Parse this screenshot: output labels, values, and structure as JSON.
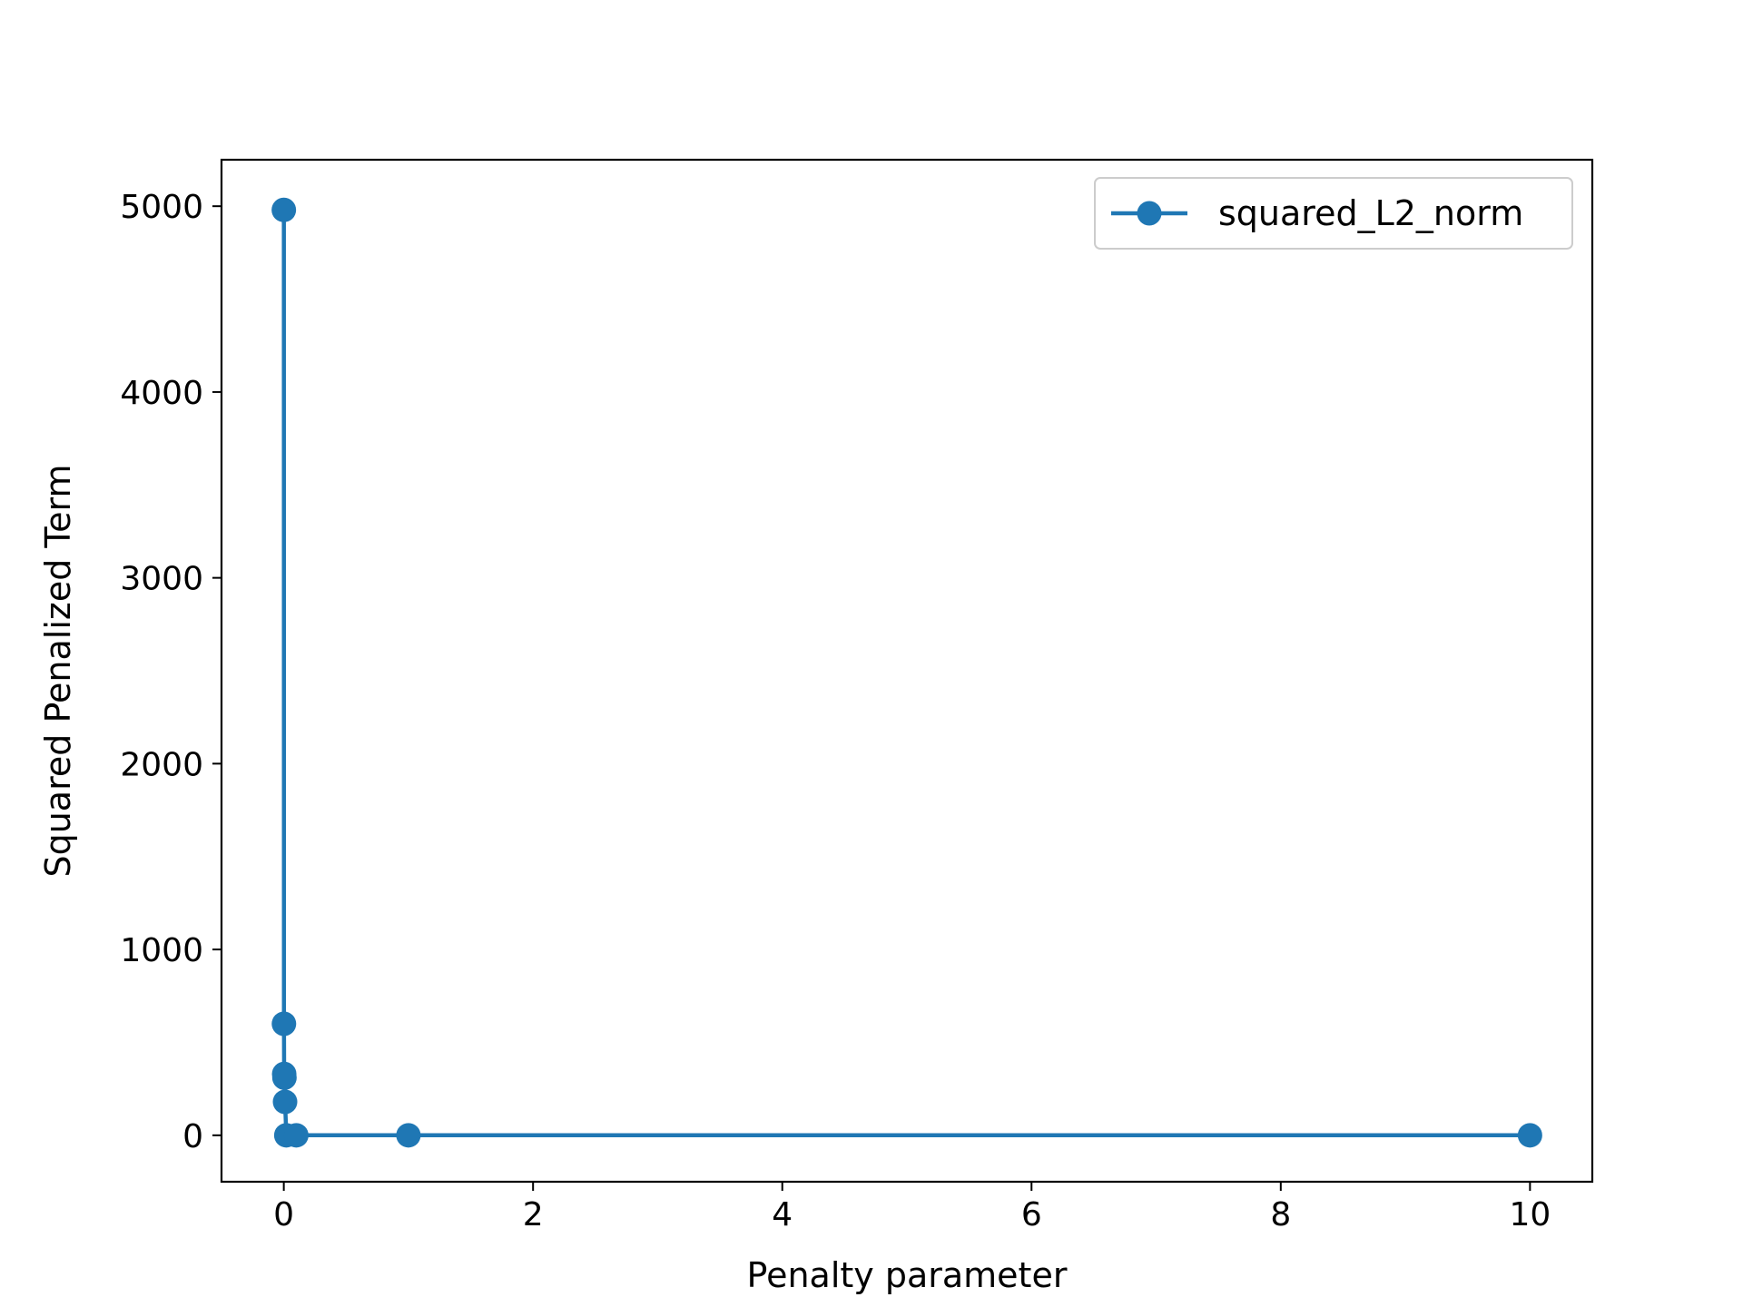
{
  "chart_data": {
    "type": "line",
    "title": "",
    "xlabel": "Penalty parameter",
    "ylabel": "Squared Penalized Term",
    "xlim": [
      -0.5,
      10.5
    ],
    "ylim": [
      -250,
      5250
    ],
    "xticks": [
      0,
      2,
      4,
      6,
      8,
      10
    ],
    "yticks": [
      0,
      1000,
      2000,
      3000,
      4000,
      5000
    ],
    "xtick_labels": [
      "0",
      "2",
      "4",
      "6",
      "8",
      "10"
    ],
    "ytick_labels": [
      "0",
      "1000",
      "2000",
      "3000",
      "4000",
      "5000"
    ],
    "grid": false,
    "legend": {
      "placement": "upper-right"
    },
    "series": [
      {
        "name": "squared_L2_norm",
        "color": "#1f77b4",
        "marker": "circle",
        "points": [
          {
            "x": 0.0001,
            "y": 4980
          },
          {
            "x": 0.001,
            "y": 600
          },
          {
            "x": 0.003,
            "y": 330
          },
          {
            "x": 0.005,
            "y": 310
          },
          {
            "x": 0.01,
            "y": 180
          },
          {
            "x": 0.02,
            "y": 0
          },
          {
            "x": 0.1,
            "y": 0
          },
          {
            "x": 1,
            "y": 0
          },
          {
            "x": 10,
            "y": 0
          }
        ]
      }
    ]
  }
}
